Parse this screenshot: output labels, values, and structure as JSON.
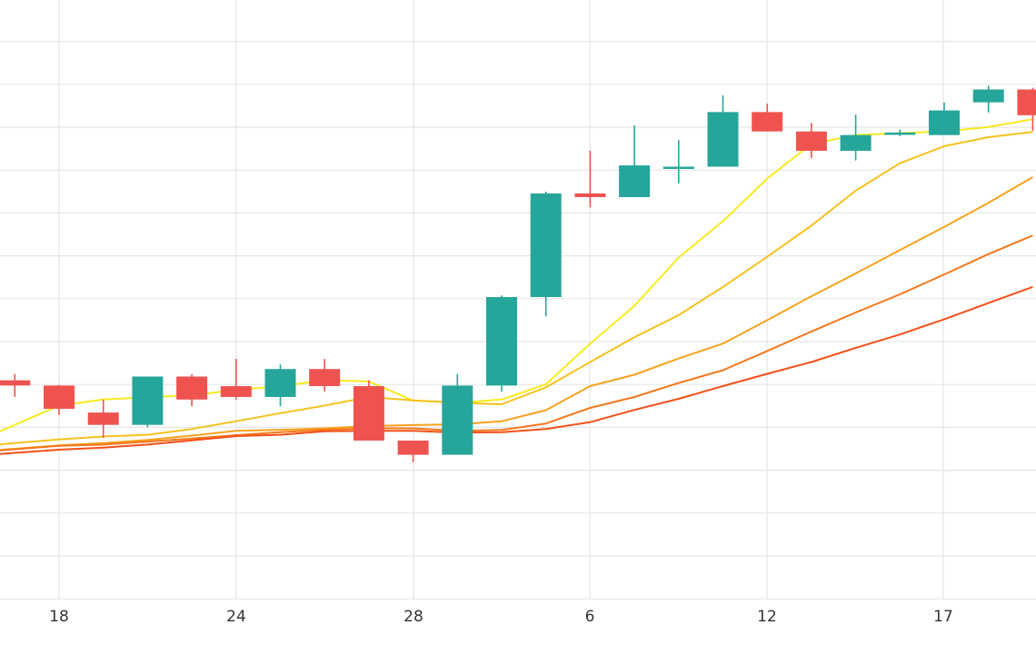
{
  "chart_data": {
    "type": "candlestick",
    "grid": true,
    "x_tick_labels": [
      "18",
      "24",
      "28",
      "6",
      "12",
      "17"
    ],
    "candles": [
      {
        "open": 0.57,
        "high": 1.3,
        "low": -1.38,
        "close": -0.04
      },
      {
        "open": -0.04,
        "high": 0.02,
        "low": -3.47,
        "close": -2.76
      },
      {
        "open": -3.2,
        "high": -1.68,
        "low": -6.15,
        "close": -4.64
      },
      {
        "open": -4.64,
        "high": 1.01,
        "low": -4.92,
        "close": 1.01
      },
      {
        "open": 1.01,
        "high": 1.3,
        "low": -2.47,
        "close": -1.68
      },
      {
        "open": -0.11,
        "high": 3.08,
        "low": -1.68,
        "close": -1.38
      },
      {
        "open": -1.38,
        "high": 2.43,
        "low": -2.47,
        "close": 1.89
      },
      {
        "open": 1.89,
        "high": 3.08,
        "low": -0.76,
        "close": -0.11
      },
      {
        "open": -0.11,
        "high": 0.57,
        "low": -6.48,
        "close": -6.48
      },
      {
        "open": -6.48,
        "high": -6.48,
        "low": -9.01,
        "close": -8.14
      },
      {
        "open": -8.14,
        "high": 1.3,
        "low": -8.14,
        "close": -0.04
      },
      {
        "open": -0.04,
        "high": 10.5,
        "low": -0.76,
        "close": 10.31
      },
      {
        "open": 10.31,
        "high": 22.64,
        "low": 8.05,
        "close": 22.43
      },
      {
        "open": 22.43,
        "high": 27.42,
        "low": 20.8,
        "close": 22.0
      },
      {
        "open": 22.0,
        "high": 30.39,
        "low": 22.0,
        "close": 25.71
      },
      {
        "open": 25.56,
        "high": 28.66,
        "low": 23.61,
        "close": 25.56
      },
      {
        "open": 25.56,
        "high": 33.91,
        "low": 25.56,
        "close": 31.95
      },
      {
        "open": 31.95,
        "high": 32.93,
        "low": 29.68,
        "close": 29.68
      },
      {
        "open": 29.68,
        "high": 30.68,
        "low": 26.55,
        "close": 27.42
      },
      {
        "open": 27.42,
        "high": 31.64,
        "low": 26.29,
        "close": 29.26
      },
      {
        "open": 29.55,
        "high": 29.9,
        "low": 29.14,
        "close": 29.55
      },
      {
        "open": 29.26,
        "high": 33.06,
        "low": 29.26,
        "close": 32.14
      },
      {
        "open": 33.09,
        "high": 35.04,
        "low": 31.89,
        "close": 34.59
      },
      {
        "open": 34.59,
        "high": 34.79,
        "low": 29.75,
        "close": 31.58
      }
    ],
    "moving_averages": [
      {
        "color": "#f8ea20",
        "values": [
          -4.64,
          -2.4,
          -1.68,
          -1.4,
          -1.2,
          -0.55,
          -0.11,
          0.57,
          0.44,
          -1.8,
          -2.05,
          -1.68,
          0.1,
          4.87,
          9.29,
          14.93,
          19.18,
          24.17,
          28.21,
          29.26,
          29.49,
          29.69,
          30.19,
          31.12
        ]
      },
      {
        "color": "#f5c21e",
        "values": [
          -6.78,
          -6.34,
          -6.0,
          -5.8,
          -5.12,
          -4.22,
          -3.27,
          -2.39,
          -1.38,
          -1.79,
          -2.05,
          -2.23,
          -0.26,
          2.71,
          5.61,
          8.19,
          11.49,
          15.02,
          18.67,
          22.75,
          25.96,
          27.96,
          29.01,
          29.63
        ]
      },
      {
        "color": "#f7a21e",
        "values": [
          -7.44,
          -7.04,
          -6.78,
          -6.4,
          -5.9,
          -5.33,
          -5.22,
          -5.05,
          -4.78,
          -4.66,
          -4.58,
          -4.22,
          -2.92,
          -0.11,
          1.22,
          3.12,
          4.87,
          7.6,
          10.4,
          13.07,
          15.81,
          18.51,
          21.34,
          24.34
        ]
      },
      {
        "color": "#f4771c",
        "values": [
          -7.49,
          -7.1,
          -6.95,
          -6.6,
          -6.25,
          -5.85,
          -5.5,
          -5.21,
          -5.05,
          -5.05,
          -5.35,
          -5.24,
          -4.48,
          -2.66,
          -1.38,
          0.25,
          1.75,
          4.0,
          6.28,
          8.5,
          10.63,
          12.95,
          15.34,
          17.51
        ]
      },
      {
        "color": "#f25018",
        "values": [
          -7.92,
          -7.55,
          -7.3,
          -6.95,
          -6.45,
          -5.95,
          -5.8,
          -5.4,
          -5.33,
          -5.33,
          -5.55,
          -5.5,
          -5.12,
          -4.33,
          -2.89,
          -1.59,
          -0.11,
          1.33,
          2.71,
          4.37,
          5.93,
          7.71,
          9.61,
          11.5
        ]
      }
    ],
    "colors": {
      "up": "#26a69a",
      "down": "#ef5350",
      "grid": "#e6e6e6",
      "axis_text": "#333333"
    }
  }
}
